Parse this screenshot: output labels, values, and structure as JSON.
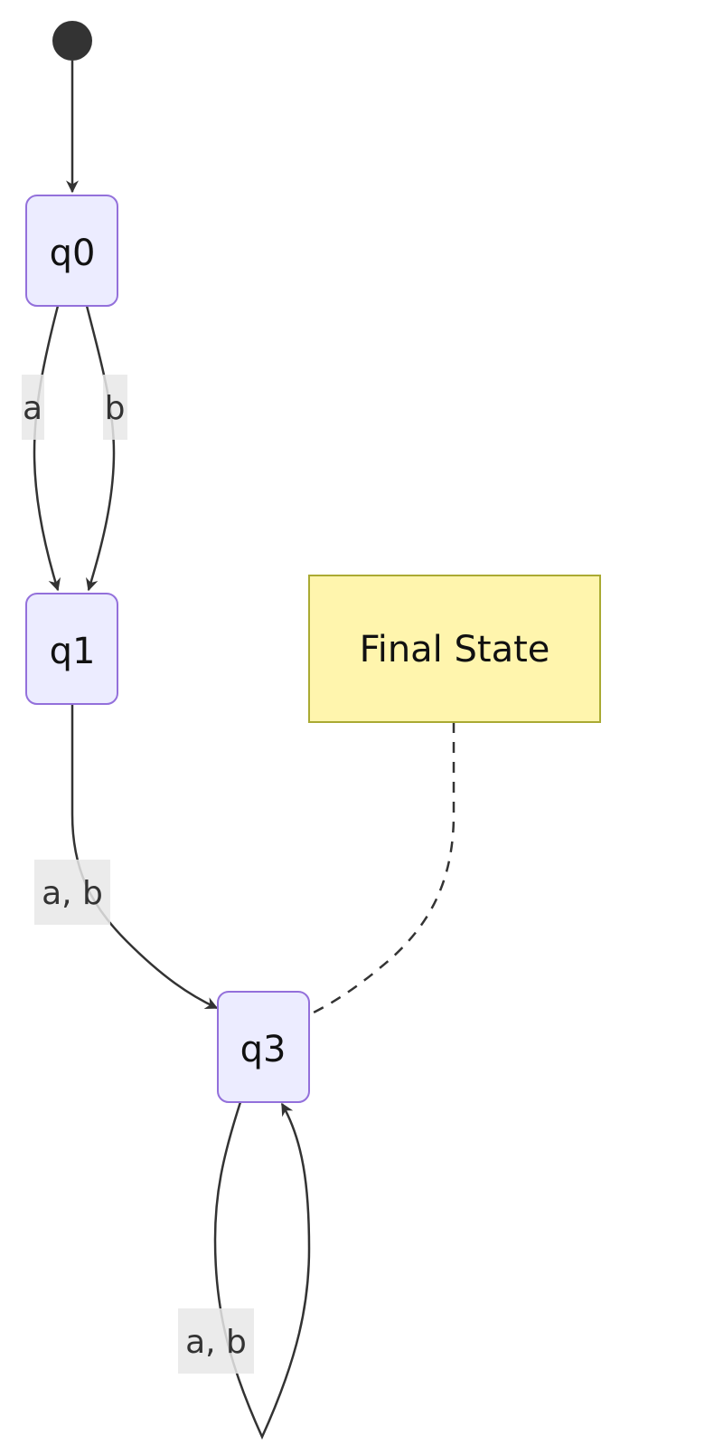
{
  "diagram": {
    "type": "state-diagram",
    "colors": {
      "state_fill": "#ececff",
      "state_stroke": "#9370db",
      "note_fill": "#fff5ad",
      "note_stroke": "#aaaa33",
      "edge": "#333333",
      "label_bg": "#e8e8e8"
    },
    "start": {
      "icon": "filled-circle-start-icon"
    },
    "states": [
      {
        "id": "q0",
        "label": "q0"
      },
      {
        "id": "q1",
        "label": "q1"
      },
      {
        "id": "q3",
        "label": "q3"
      }
    ],
    "note": {
      "text": "Final State",
      "attached_to": "q3"
    },
    "transitions": [
      {
        "from": "start",
        "to": "q0",
        "label": ""
      },
      {
        "from": "q0",
        "to": "q1",
        "label": "a"
      },
      {
        "from": "q0",
        "to": "q1",
        "label": "b"
      },
      {
        "from": "q1",
        "to": "q3",
        "label": "a, b"
      },
      {
        "from": "q3",
        "to": "q3",
        "label": "a, b"
      }
    ]
  }
}
